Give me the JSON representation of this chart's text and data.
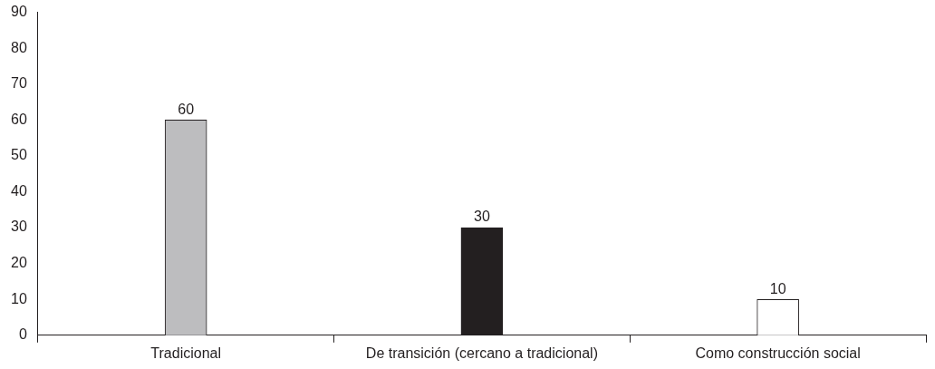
{
  "chart_data": {
    "type": "bar",
    "categories": [
      "Tradicional",
      "De transición (cercano a tradicional)",
      "Como construcción social"
    ],
    "values": [
      60,
      30,
      10
    ],
    "colors": [
      "#bdbdbf",
      "#231f20",
      "#ffffff"
    ],
    "ylim": [
      0,
      90
    ],
    "yticks": [
      0,
      10,
      20,
      30,
      40,
      50,
      60,
      70,
      80,
      90
    ],
    "grid": false,
    "legend": false,
    "data_labels": true
  }
}
